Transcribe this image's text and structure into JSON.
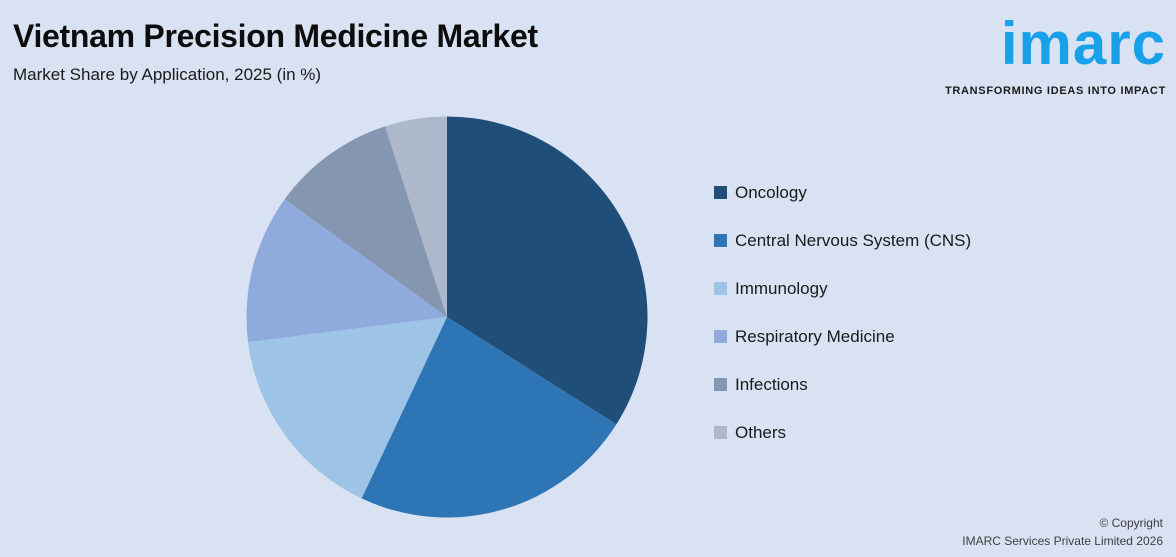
{
  "header": {
    "title": "Vietnam Precision Medicine Market",
    "subtitle": "Market Share by Application, 2025 (in %)"
  },
  "logo": {
    "wordmark": "imarc",
    "tagline": "TRANSFORMING IDEAS INTO IMPACT",
    "color": "#18a0e8"
  },
  "chart_data": {
    "type": "pie",
    "title": "Market Share by Application, 2025 (in %)",
    "unit": "%",
    "direction": "clockwise",
    "start_angle_deg": 0,
    "legend_position": "right",
    "data_labels_shown": false,
    "series": [
      {
        "label": "Oncology",
        "value": 34,
        "color": "#1F4E79"
      },
      {
        "label": "Central Nervous System (CNS)",
        "value": 23,
        "color": "#2E75B6"
      },
      {
        "label": "Immunology",
        "value": 16,
        "color": "#9DC3E6"
      },
      {
        "label": "Respiratory Medicine",
        "value": 12,
        "color": "#8FAADC"
      },
      {
        "label": "Infections",
        "value": 10,
        "color": "#8496B0"
      },
      {
        "label": "Others",
        "value": 5,
        "color": "#ADB9CA"
      }
    ]
  },
  "footer": {
    "copyright_line1": "© Copyright",
    "copyright_line2": "IMARC Services Private Limited 2026"
  },
  "background_color": "#d9e2f3"
}
